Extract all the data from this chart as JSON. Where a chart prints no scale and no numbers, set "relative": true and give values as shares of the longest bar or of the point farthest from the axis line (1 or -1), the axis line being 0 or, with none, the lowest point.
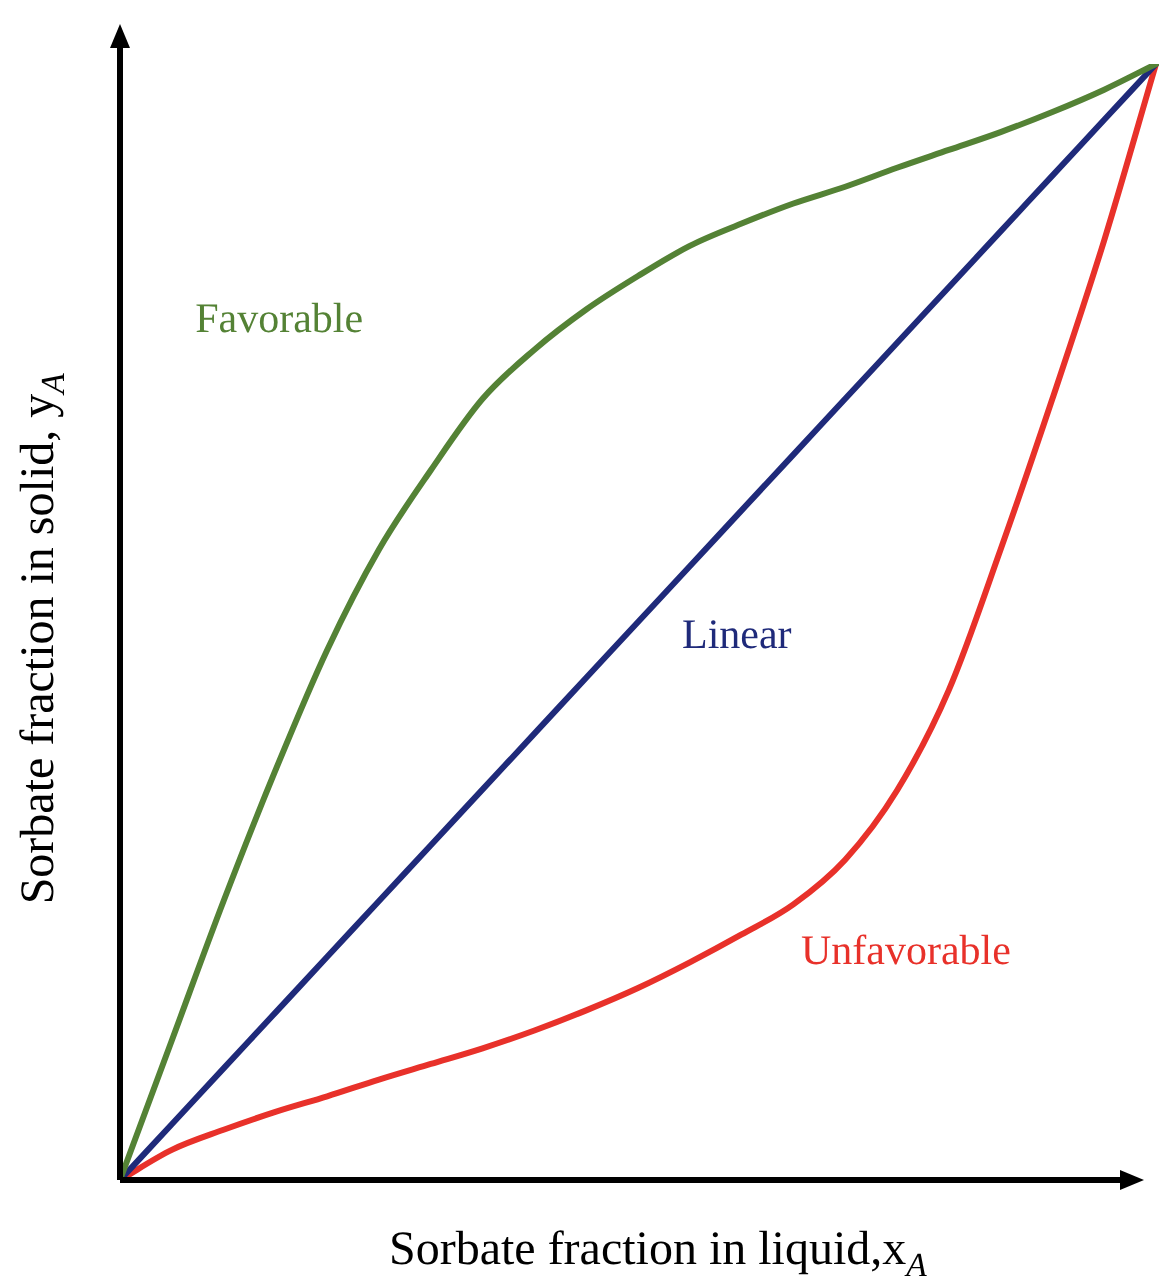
{
  "chart_data": {
    "type": "line",
    "relative": true,
    "xlabel": "Sorbate fraction in liquid,x$_{A}$",
    "ylabel": "Sorbate fraction in solid, y$_{A}$",
    "categories": [
      null,
      null,
      null,
      null,
      null,
      null,
      null,
      null,
      null,
      null,
      null,
      null,
      null,
      null,
      null,
      null,
      null,
      null,
      null,
      null,
      null
    ],
    "series": [
      {
        "name": "Favorable",
        "color": "#548235",
        "values": [
          0,
          0.125,
          0.25,
          0.367,
          0.475,
          0.565,
          0.636,
          0.7,
          0.744,
          0.78,
          0.81,
          0.837,
          0.857,
          0.875,
          0.89,
          0.907,
          0.923,
          0.939,
          0.957,
          0.977,
          1
        ]
      },
      {
        "name": "Linear",
        "color": "#1f2a7a",
        "values": [
          0,
          0.05,
          0.1,
          0.15,
          0.2,
          0.25,
          0.3,
          0.35,
          0.4,
          0.45,
          0.5,
          0.55,
          0.6,
          0.65,
          0.7,
          0.75,
          0.8,
          0.85,
          0.9,
          0.95,
          1
        ]
      },
      {
        "name": "Unfavorable",
        "color": "#e8312a",
        "values": [
          0,
          0.027,
          0.045,
          0.061,
          0.075,
          0.09,
          0.104,
          0.118,
          0.134,
          0.152,
          0.172,
          0.195,
          0.22,
          0.247,
          0.287,
          0.349,
          0.439,
          0.565,
          0.7,
          0.842,
          1
        ]
      }
    ],
    "grid": false,
    "legend": false,
    "marker": "none",
    "line_style": "solid"
  }
}
